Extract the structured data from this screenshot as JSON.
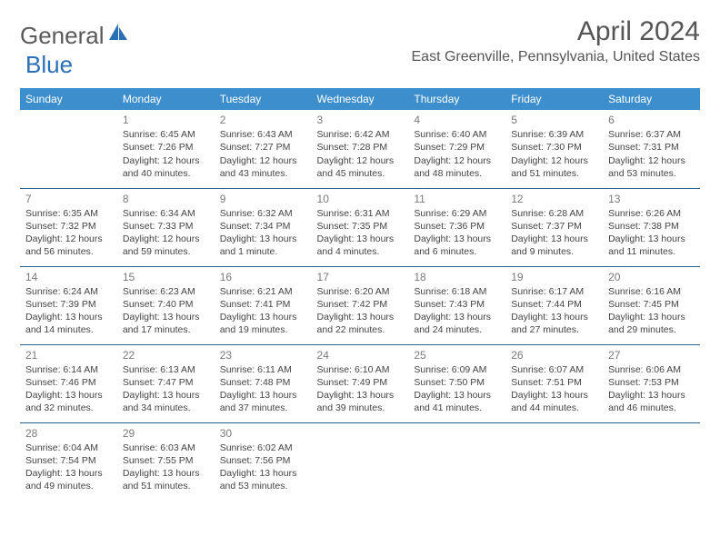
{
  "logo": {
    "general": "General",
    "blue": "Blue"
  },
  "title": "April 2024",
  "location": "East Greenville, Pennsylvania, United States",
  "colors": {
    "header_bg": "#3c8ecd",
    "header_text": "#ffffff",
    "row_border": "#2e5f8a",
    "body_text": "#444444",
    "daynum": "#7a7a7a",
    "title_text": "#555555",
    "logo_gray": "#5a5a5a",
    "logo_blue": "#2a6fb5"
  },
  "day_headers": [
    "Sunday",
    "Monday",
    "Tuesday",
    "Wednesday",
    "Thursday",
    "Friday",
    "Saturday"
  ],
  "weeks": [
    [
      null,
      {
        "n": "1",
        "sr": "6:45 AM",
        "ss": "7:26 PM",
        "dl": "12 hours and 40 minutes."
      },
      {
        "n": "2",
        "sr": "6:43 AM",
        "ss": "7:27 PM",
        "dl": "12 hours and 43 minutes."
      },
      {
        "n": "3",
        "sr": "6:42 AM",
        "ss": "7:28 PM",
        "dl": "12 hours and 45 minutes."
      },
      {
        "n": "4",
        "sr": "6:40 AM",
        "ss": "7:29 PM",
        "dl": "12 hours and 48 minutes."
      },
      {
        "n": "5",
        "sr": "6:39 AM",
        "ss": "7:30 PM",
        "dl": "12 hours and 51 minutes."
      },
      {
        "n": "6",
        "sr": "6:37 AM",
        "ss": "7:31 PM",
        "dl": "12 hours and 53 minutes."
      }
    ],
    [
      {
        "n": "7",
        "sr": "6:35 AM",
        "ss": "7:32 PM",
        "dl": "12 hours and 56 minutes."
      },
      {
        "n": "8",
        "sr": "6:34 AM",
        "ss": "7:33 PM",
        "dl": "12 hours and 59 minutes."
      },
      {
        "n": "9",
        "sr": "6:32 AM",
        "ss": "7:34 PM",
        "dl": "13 hours and 1 minute."
      },
      {
        "n": "10",
        "sr": "6:31 AM",
        "ss": "7:35 PM",
        "dl": "13 hours and 4 minutes."
      },
      {
        "n": "11",
        "sr": "6:29 AM",
        "ss": "7:36 PM",
        "dl": "13 hours and 6 minutes."
      },
      {
        "n": "12",
        "sr": "6:28 AM",
        "ss": "7:37 PM",
        "dl": "13 hours and 9 minutes."
      },
      {
        "n": "13",
        "sr": "6:26 AM",
        "ss": "7:38 PM",
        "dl": "13 hours and 11 minutes."
      }
    ],
    [
      {
        "n": "14",
        "sr": "6:24 AM",
        "ss": "7:39 PM",
        "dl": "13 hours and 14 minutes."
      },
      {
        "n": "15",
        "sr": "6:23 AM",
        "ss": "7:40 PM",
        "dl": "13 hours and 17 minutes."
      },
      {
        "n": "16",
        "sr": "6:21 AM",
        "ss": "7:41 PM",
        "dl": "13 hours and 19 minutes."
      },
      {
        "n": "17",
        "sr": "6:20 AM",
        "ss": "7:42 PM",
        "dl": "13 hours and 22 minutes."
      },
      {
        "n": "18",
        "sr": "6:18 AM",
        "ss": "7:43 PM",
        "dl": "13 hours and 24 minutes."
      },
      {
        "n": "19",
        "sr": "6:17 AM",
        "ss": "7:44 PM",
        "dl": "13 hours and 27 minutes."
      },
      {
        "n": "20",
        "sr": "6:16 AM",
        "ss": "7:45 PM",
        "dl": "13 hours and 29 minutes."
      }
    ],
    [
      {
        "n": "21",
        "sr": "6:14 AM",
        "ss": "7:46 PM",
        "dl": "13 hours and 32 minutes."
      },
      {
        "n": "22",
        "sr": "6:13 AM",
        "ss": "7:47 PM",
        "dl": "13 hours and 34 minutes."
      },
      {
        "n": "23",
        "sr": "6:11 AM",
        "ss": "7:48 PM",
        "dl": "13 hours and 37 minutes."
      },
      {
        "n": "24",
        "sr": "6:10 AM",
        "ss": "7:49 PM",
        "dl": "13 hours and 39 minutes."
      },
      {
        "n": "25",
        "sr": "6:09 AM",
        "ss": "7:50 PM",
        "dl": "13 hours and 41 minutes."
      },
      {
        "n": "26",
        "sr": "6:07 AM",
        "ss": "7:51 PM",
        "dl": "13 hours and 44 minutes."
      },
      {
        "n": "27",
        "sr": "6:06 AM",
        "ss": "7:53 PM",
        "dl": "13 hours and 46 minutes."
      }
    ],
    [
      {
        "n": "28",
        "sr": "6:04 AM",
        "ss": "7:54 PM",
        "dl": "13 hours and 49 minutes."
      },
      {
        "n": "29",
        "sr": "6:03 AM",
        "ss": "7:55 PM",
        "dl": "13 hours and 51 minutes."
      },
      {
        "n": "30",
        "sr": "6:02 AM",
        "ss": "7:56 PM",
        "dl": "13 hours and 53 minutes."
      },
      null,
      null,
      null,
      null
    ]
  ],
  "labels": {
    "sunrise": "Sunrise:",
    "sunset": "Sunset:",
    "daylight": "Daylight:"
  }
}
